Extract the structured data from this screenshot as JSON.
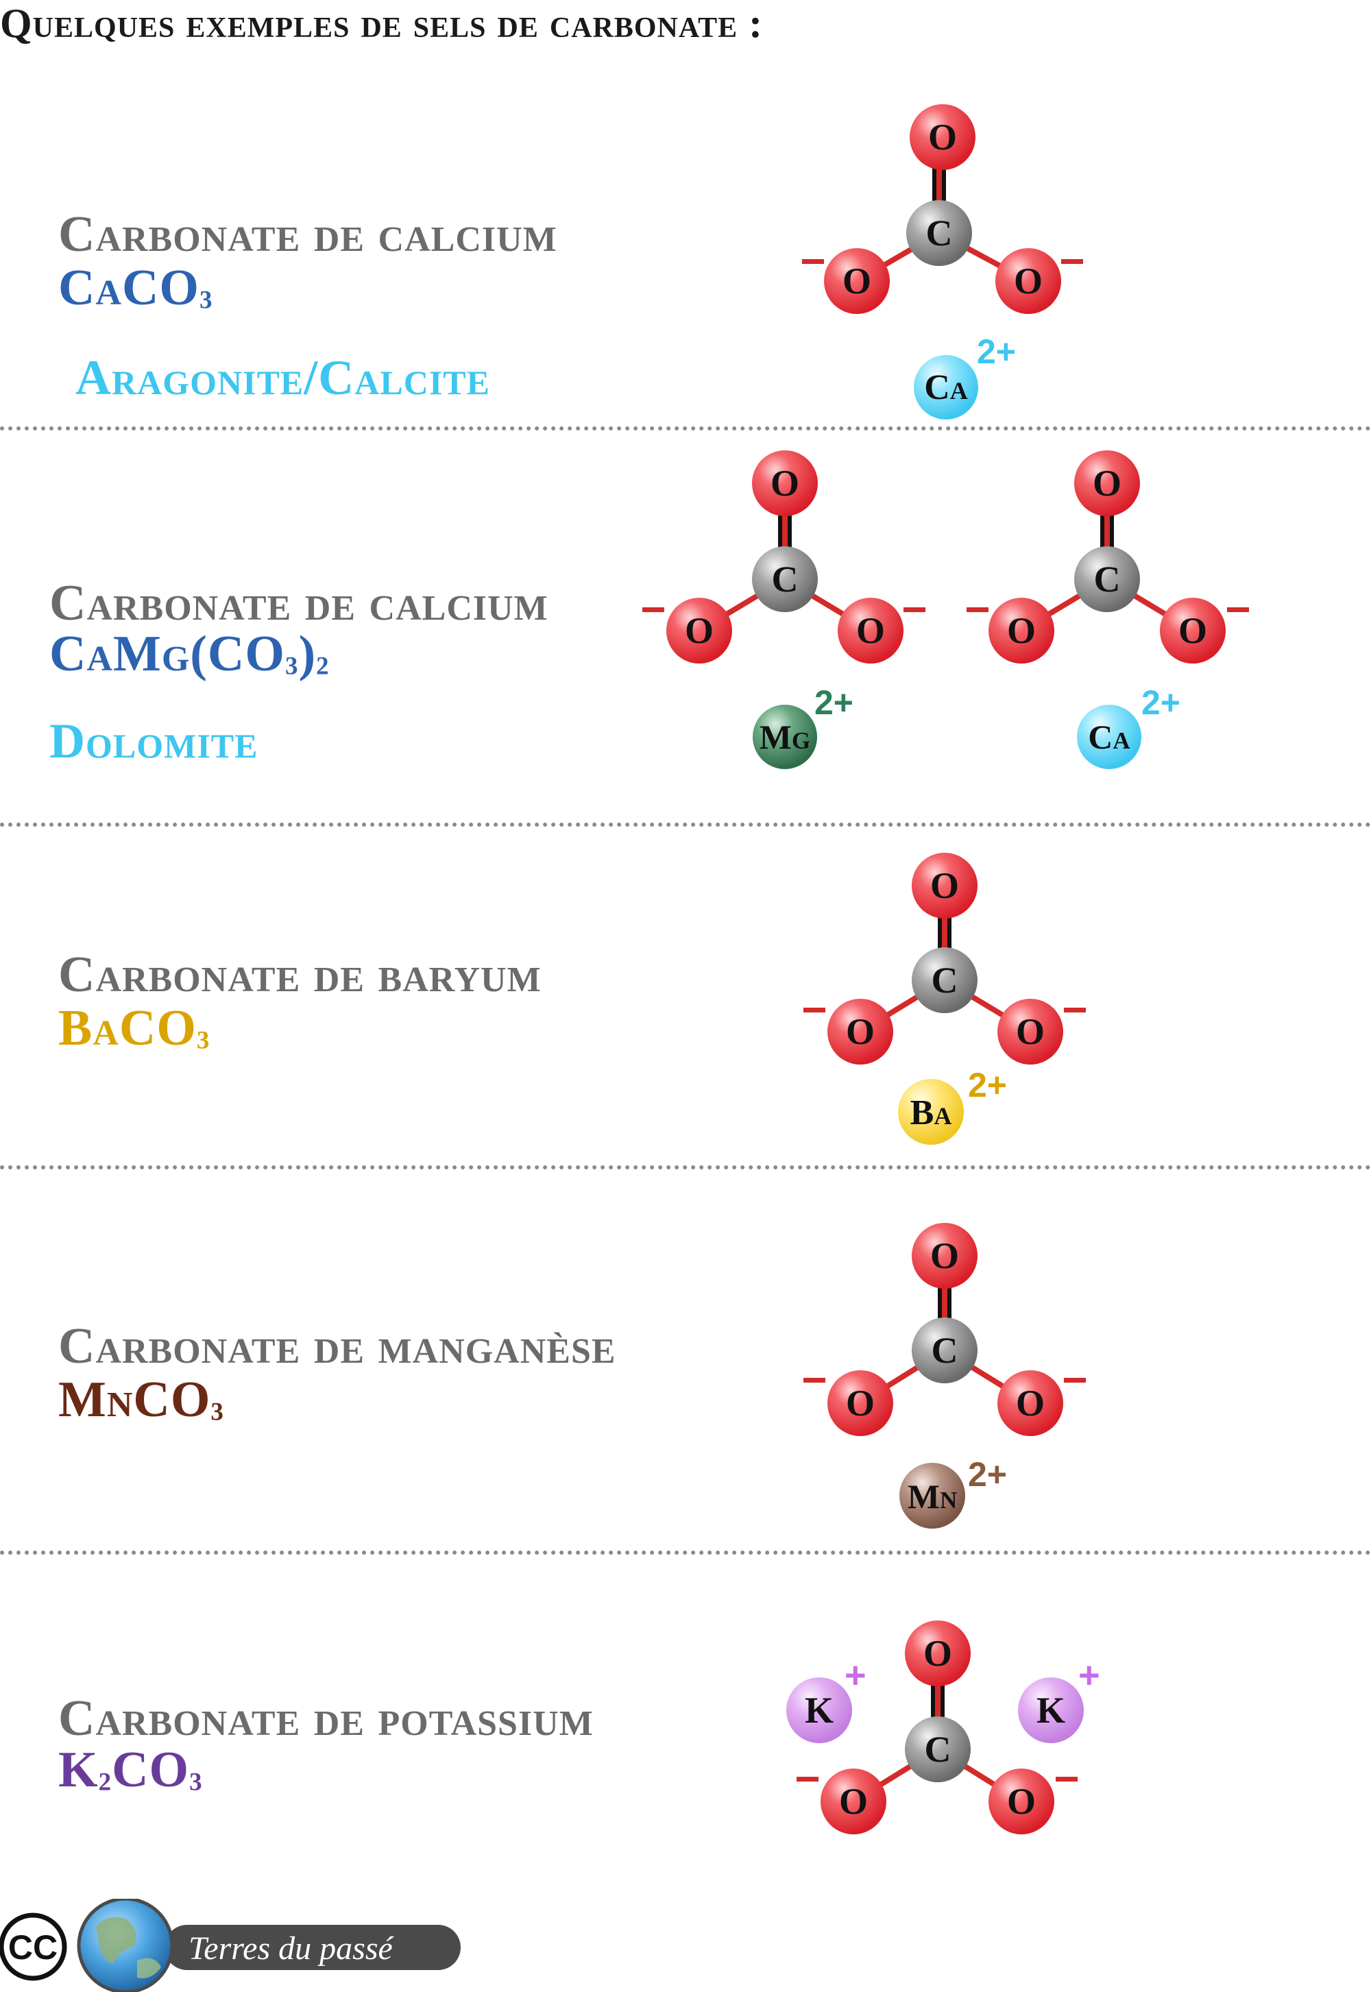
{
  "title": "Quelques exemples de sels de carbonate :",
  "atom_labels": {
    "oxygen": "O",
    "carbon": "C",
    "charge_minus": "−"
  },
  "colors": {
    "oxygen": "#e8343c",
    "carbon": "#8c8c8c",
    "bond": "#d42a2a",
    "name_gray": "#6b6b6b",
    "calcium_text": "#2d63b0",
    "calcium_light": "#3cc6f0",
    "magnesium": "#2e7f5a",
    "barium": "#d9a400",
    "manganese": "#6a2a14",
    "potassium": "#6a3c9a"
  },
  "sections": [
    {
      "name": "Carbonate de calcium",
      "formula": {
        "parts": [
          {
            "text": "CaCO"
          },
          {
            "text": "3",
            "sub": true
          }
        ],
        "color": "#2d63b0"
      },
      "mineral": {
        "text": "Aragonite/Calcite",
        "color": "#3cc6f0"
      },
      "ions": [
        {
          "symbol": "Ca",
          "charge": "2+",
          "color": "#3cc6f0"
        }
      ]
    },
    {
      "name": "Carbonate de calcium",
      "formula": {
        "parts": [
          {
            "text": "CaMg(CO"
          },
          {
            "text": "3",
            "sub": true
          },
          {
            "text": ")"
          },
          {
            "text": "2",
            "sub": true
          }
        ],
        "color": "#2d63b0"
      },
      "mineral": {
        "text": "Dolomite",
        "color": "#3cc6f0"
      },
      "ions": [
        {
          "symbol": "Mg",
          "charge": "2+",
          "color": "#2e7f5a"
        },
        {
          "symbol": "Ca",
          "charge": "2+",
          "color": "#3cc6f0"
        }
      ]
    },
    {
      "name": "Carbonate de baryum",
      "formula": {
        "parts": [
          {
            "text": "BaCO"
          },
          {
            "text": "3",
            "sub": true
          }
        ],
        "color": "#d9a400"
      },
      "ions": [
        {
          "symbol": "Ba",
          "charge": "2+",
          "color": "#d9a400"
        }
      ]
    },
    {
      "name": "Carbonate de manganèse",
      "formula": {
        "parts": [
          {
            "text": "MnCO"
          },
          {
            "text": "3",
            "sub": true
          }
        ],
        "color": "#6a2a14"
      },
      "ions": [
        {
          "symbol": "Mn",
          "charge": "2+",
          "color": "#8a5a3a"
        }
      ]
    },
    {
      "name": "Carbonate de potassium",
      "formula": {
        "parts": [
          {
            "text": "K"
          },
          {
            "text": "2",
            "sub": true
          },
          {
            "text": "CO"
          },
          {
            "text": "3",
            "sub": true
          }
        ],
        "color": "#6a3c9a"
      },
      "ions": [
        {
          "symbol": "K",
          "charge": "+",
          "color": "#c86be6"
        },
        {
          "symbol": "K",
          "charge": "+",
          "color": "#c86be6"
        }
      ]
    }
  ],
  "footer": {
    "cc": "CC",
    "brand": "Terres du passé",
    "globe_icon": "globe-icon"
  }
}
